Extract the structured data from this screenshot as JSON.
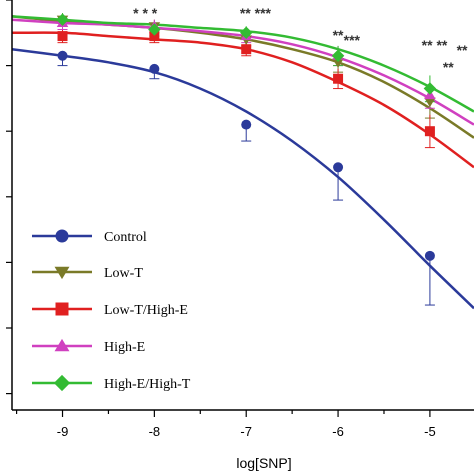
{
  "chart_data": {
    "type": "line",
    "title": "",
    "xlabel": "log[SNP]",
    "ylabel": "",
    "xlim": [
      -9.55,
      -4.52
    ],
    "ylim": [
      0,
      125
    ],
    "x_ticks": [
      -9,
      -8,
      -7,
      -6,
      -5
    ],
    "x_tick_labels": [
      "-9",
      "-8",
      "-7",
      "-6",
      "-5"
    ],
    "grid": false,
    "legend_position": "bottom-left",
    "series": [
      {
        "name": "Control",
        "color": "#2b3a9a",
        "marker": "circle",
        "x": [
          -9,
          -8,
          -7,
          -6,
          -5
        ],
        "y": [
          108,
          104,
          87,
          74,
          47
        ],
        "err": [
          3,
          3,
          5,
          10,
          15
        ],
        "curve": [
          [
            -9.55,
            110
          ],
          [
            -9,
            108
          ],
          [
            -8.5,
            106
          ],
          [
            -8,
            103
          ],
          [
            -7.5,
            98
          ],
          [
            -7,
            91
          ],
          [
            -6.5,
            82
          ],
          [
            -6,
            71
          ],
          [
            -5.5,
            58
          ],
          [
            -5,
            44
          ],
          [
            -4.52,
            31
          ]
        ]
      },
      {
        "name": "Low-T",
        "color": "#7a7a28",
        "marker": "triangle-down",
        "x": [
          -9,
          -8,
          -7,
          -6,
          -5
        ],
        "y": [
          119,
          117,
          113,
          106,
          94
        ],
        "err": [
          2,
          2,
          2,
          3,
          5
        ],
        "curve": [
          [
            -9.55,
            120
          ],
          [
            -9,
            118.5
          ],
          [
            -8.5,
            117.5
          ],
          [
            -8,
            116.5
          ],
          [
            -7.5,
            115
          ],
          [
            -7,
            113
          ],
          [
            -6.5,
            110
          ],
          [
            -6,
            106
          ],
          [
            -5.5,
            100
          ],
          [
            -5,
            92
          ],
          [
            -4.52,
            83
          ]
        ]
      },
      {
        "name": "Low-T/High-E",
        "color": "#e02020",
        "marker": "square",
        "x": [
          -9,
          -8,
          -7,
          -6,
          -5
        ],
        "y": [
          114,
          114,
          110,
          101,
          85
        ],
        "err": [
          2,
          2,
          2,
          3,
          5
        ],
        "curve": [
          [
            -9.55,
            115
          ],
          [
            -9,
            115
          ],
          [
            -8.5,
            114
          ],
          [
            -8,
            113
          ],
          [
            -7.5,
            112
          ],
          [
            -7,
            110
          ],
          [
            -6.5,
            106
          ],
          [
            -6,
            100
          ],
          [
            -5.5,
            93
          ],
          [
            -5,
            84
          ],
          [
            -4.52,
            74
          ]
        ]
      },
      {
        "name": "High-E",
        "color": "#d040c0",
        "marker": "triangle-up",
        "x": [
          -9,
          -8,
          -7,
          -6,
          -5
        ],
        "y": [
          118,
          117,
          114,
          108,
          96
        ],
        "err": [
          2,
          2,
          2,
          3,
          4
        ],
        "curve": [
          [
            -9.55,
            119
          ],
          [
            -9,
            118
          ],
          [
            -8.5,
            117.5
          ],
          [
            -8,
            116.5
          ],
          [
            -7.5,
            115.5
          ],
          [
            -7,
            114
          ],
          [
            -6.5,
            111.5
          ],
          [
            -6,
            107.5
          ],
          [
            -5.5,
            102
          ],
          [
            -5,
            95
          ],
          [
            -4.52,
            87
          ]
        ]
      },
      {
        "name": "High-E/High-T",
        "color": "#33bb33",
        "marker": "diamond",
        "x": [
          -9,
          -8,
          -7,
          -6,
          -5
        ],
        "y": [
          119,
          116,
          115,
          108,
          98
        ],
        "err": [
          2,
          2,
          2,
          3,
          4
        ],
        "curve": [
          [
            -9.55,
            120
          ],
          [
            -9,
            119
          ],
          [
            -8.5,
            118
          ],
          [
            -8,
            117.5
          ],
          [
            -7.5,
            116.5
          ],
          [
            -7,
            115.5
          ],
          [
            -6.5,
            113.5
          ],
          [
            -6,
            110
          ],
          [
            -5.5,
            105
          ],
          [
            -5,
            98.5
          ],
          [
            -4.52,
            91
          ]
        ]
      }
    ],
    "annotations": [
      {
        "text": "* * *",
        "x": -8.1
      },
      {
        "text": "** ***",
        "x": -6.9
      },
      {
        "text": "**",
        "x": -6.0
      },
      {
        "text": "** **",
        "x": -4.95
      },
      {
        "text": "**",
        "x": -4.65
      },
      {
        "text": "***",
        "x": -5.85
      },
      {
        "text": "**",
        "x": -4.8
      }
    ]
  }
}
